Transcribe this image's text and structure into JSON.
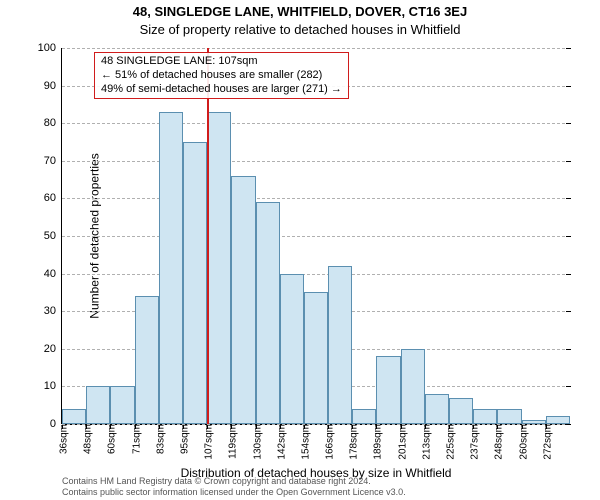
{
  "title": "48, SINGLEDGE LANE, WHITFIELD, DOVER, CT16 3EJ",
  "subtitle": "Size of property relative to detached houses in Whitfield",
  "ylabel": "Number of detached properties",
  "xlabel": "Distribution of detached houses by size in Whitfield",
  "footer_line1": "Contains HM Land Registry data © Crown copyright and database right 2024.",
  "footer_line2": "Contains public sector information licensed under the Open Government Licence v3.0.",
  "chart": {
    "type": "histogram",
    "ylim": [
      0,
      100
    ],
    "yticks": [
      0,
      10,
      20,
      30,
      40,
      50,
      60,
      70,
      80,
      90,
      100
    ],
    "xticks_labels": [
      "36sqm",
      "48sqm",
      "60sqm",
      "71sqm",
      "83sqm",
      "95sqm",
      "107sqm",
      "119sqm",
      "130sqm",
      "142sqm",
      "154sqm",
      "166sqm",
      "178sqm",
      "189sqm",
      "201sqm",
      "213sqm",
      "225sqm",
      "237sqm",
      "248sqm",
      "260sqm",
      "272sqm"
    ],
    "values": [
      4,
      10,
      10,
      34,
      83,
      75,
      83,
      66,
      59,
      40,
      35,
      42,
      4,
      18,
      20,
      8,
      7,
      4,
      4,
      1,
      2
    ],
    "bar_fill": "#cfe5f2",
    "bar_stroke": "#5b8fb0",
    "grid_color": "#b0b0b0",
    "background_color": "#ffffff",
    "reference_line_index": 6,
    "reference_line_color": "#d01c1c",
    "annotation_border_color": "#d01c1c",
    "title_fontsize": 13,
    "subtitle_fontsize": 13,
    "axis_label_fontsize": 12,
    "tick_fontsize": 11
  },
  "annotation": {
    "line1": "48 SINGLEDGE LANE: 107sqm",
    "line2": "← 51% of detached houses are smaller (282)",
    "line3": "49% of semi-detached houses are larger (271) →"
  }
}
